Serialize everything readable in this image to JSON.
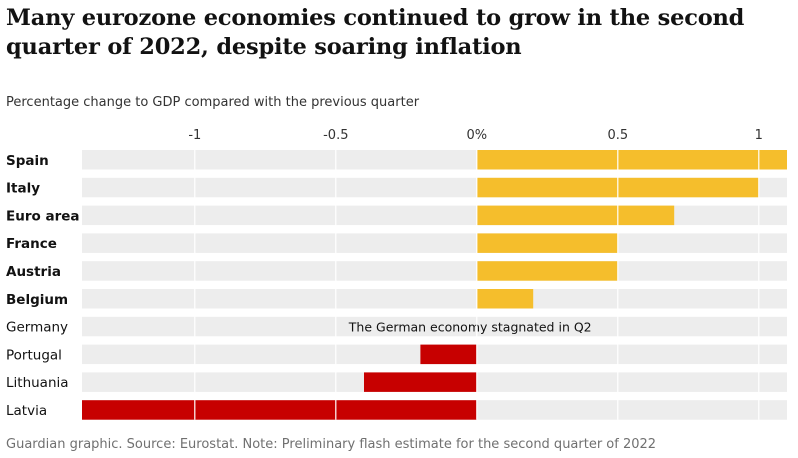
{
  "title": "Many eurozone economies continued to grow in the second quarter of 2022, despite soaring inflation",
  "subtitle": "Percentage change to GDP compared with the previous quarter",
  "source": "Guardian graphic. Source: Eurostat. Note: Preliminary flash estimate for the second quarter of 2022",
  "chart_data": {
    "type": "bar",
    "orientation": "horizontal",
    "title": "Many eurozone economies continued to grow in the second quarter of 2022, despite soaring inflation",
    "subtitle": "Percentage change to GDP compared with the previous quarter",
    "categories": [
      "Spain",
      "Italy",
      "Euro area",
      "France",
      "Austria",
      "Belgium",
      "Germany",
      "Portugal",
      "Lithuania",
      "Latvia"
    ],
    "values": [
      1.1,
      1.0,
      0.7,
      0.5,
      0.5,
      0.2,
      0.0,
      -0.2,
      -0.4,
      -1.4
    ],
    "bold_categories": [
      "Spain",
      "Italy",
      "Euro area",
      "France",
      "Austria",
      "Belgium"
    ],
    "xlim": [
      -1.4,
      1.1
    ],
    "ticks": [
      {
        "value": -1,
        "label": "-1"
      },
      {
        "value": -0.5,
        "label": "-0.5"
      },
      {
        "value": 0,
        "label": "0%"
      },
      {
        "value": 0.5,
        "label": "0.5"
      },
      {
        "value": 1,
        "label": "1"
      }
    ],
    "annotation": {
      "category": "Germany",
      "text": "The German economy stagnated in Q2"
    },
    "colors": {
      "positive": "#f5be2c",
      "negative": "#c70000",
      "track": "#ededed",
      "gridline": "#ffffff"
    },
    "legend": "none",
    "grid": true
  }
}
